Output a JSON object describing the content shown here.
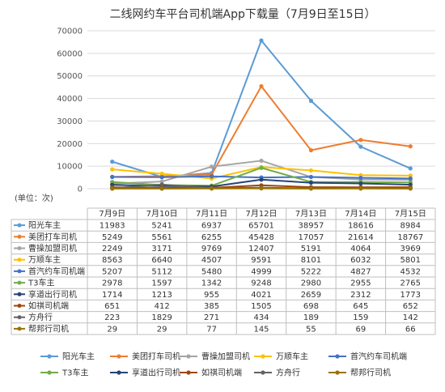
{
  "chart_data": {
    "type": "line",
    "title": "二线网约车平台司机端App下载量（7月9日至15日）",
    "unit_label": "(单位：次)",
    "ylim": [
      0,
      70000
    ],
    "yticks": [
      0,
      10000,
      20000,
      30000,
      40000,
      50000,
      60000,
      70000
    ],
    "grid": true,
    "legend_placement": "bottom",
    "categories": [
      "7月9日",
      "7月10日",
      "7月11日",
      "7月12日",
      "7月13日",
      "7月14日",
      "7月15日"
    ],
    "series": [
      {
        "name": "阳光车主",
        "color": "#5b9bd5",
        "values": [
          11983,
          5241,
          6937,
          65701,
          38957,
          18616,
          8984
        ]
      },
      {
        "name": "美团打车司机",
        "color": "#ed7d31",
        "values": [
          5249,
          5561,
          6255,
          45428,
          17057,
          21614,
          18767
        ]
      },
      {
        "name": "曹操加盟司机",
        "color": "#a5a5a5",
        "values": [
          2249,
          3171,
          9769,
          12407,
          5191,
          4064,
          3969
        ]
      },
      {
        "name": "万顺车主",
        "color": "#ffc000",
        "values": [
          8563,
          6640,
          4507,
          9591,
          8101,
          6032,
          5801
        ]
      },
      {
        "name": "首汽约车司机端",
        "color": "#4472c4",
        "values": [
          5207,
          5112,
          5480,
          4999,
          5222,
          4827,
          4532
        ]
      },
      {
        "name": "T3车主",
        "color": "#70ad47",
        "values": [
          2978,
          1597,
          1342,
          9248,
          2980,
          2955,
          2765
        ]
      },
      {
        "name": "享道出行司机",
        "color": "#264478",
        "values": [
          1714,
          1213,
          955,
          4021,
          2659,
          2312,
          1773
        ]
      },
      {
        "name": "如祺司机端",
        "color": "#9e480e",
        "values": [
          651,
          412,
          385,
          1505,
          698,
          645,
          652
        ]
      },
      {
        "name": "方舟行",
        "color": "#636363",
        "values": [
          223,
          1829,
          271,
          434,
          189,
          159,
          142
        ]
      },
      {
        "name": "帮邦行司机",
        "color": "#997300",
        "values": [
          29,
          29,
          77,
          145,
          55,
          69,
          66
        ]
      }
    ]
  }
}
